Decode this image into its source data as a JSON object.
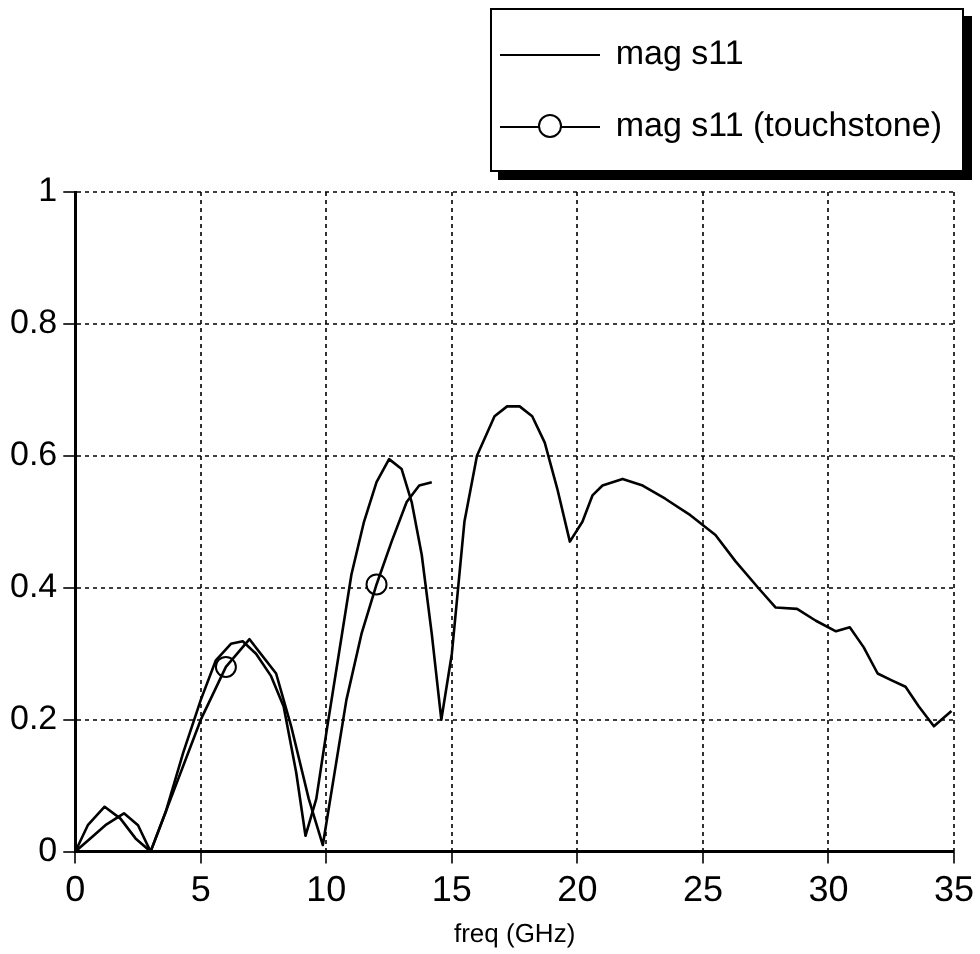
{
  "chart_data": {
    "type": "line",
    "xlabel": "freq (GHz)",
    "xlim": [
      0,
      35
    ],
    "xticks": [
      0,
      5,
      10,
      15,
      20,
      25,
      30,
      35
    ],
    "ylim": [
      0,
      1
    ],
    "yticks": [
      0,
      0.2,
      0.4,
      0.6,
      0.8,
      1
    ],
    "grid": true,
    "legend": "top right",
    "line_style": "solid",
    "series": [
      {
        "name": "mag s11",
        "color": "#000000",
        "marker": "none",
        "x": [
          0,
          0.5,
          1.17,
          1.8,
          2.4,
          3,
          3.6,
          4.3,
          5,
          5.6,
          6.2,
          6.67,
          7.2,
          7.8,
          8.3,
          8.8,
          9.17,
          9.6,
          10,
          10.5,
          11,
          11.5,
          12,
          12.5,
          13,
          13.4,
          13.8,
          14.2,
          14.58,
          15,
          15.5,
          16,
          16.7,
          17.2,
          17.7,
          18.2,
          18.7,
          19.2,
          19.7,
          20.2,
          20.6,
          21,
          21.8,
          22.6,
          23.5,
          24.5,
          25.5,
          26.3,
          27.2,
          27.9,
          28.75,
          29.5,
          30.3,
          30.85,
          31.4,
          31.96,
          32.5,
          33.07,
          33.6,
          34.2,
          34.9
        ],
        "values": [
          0,
          0.04,
          0.068,
          0.05,
          0.02,
          0,
          0.06,
          0.15,
          0.23,
          0.29,
          0.315,
          0.319,
          0.3,
          0.266,
          0.22,
          0.12,
          0.024,
          0.08,
          0.18,
          0.3,
          0.42,
          0.5,
          0.56,
          0.595,
          0.58,
          0.53,
          0.45,
          0.33,
          0.2,
          0.3,
          0.5,
          0.6,
          0.66,
          0.675,
          0.675,
          0.66,
          0.62,
          0.55,
          0.47,
          0.5,
          0.54,
          0.555,
          0.565,
          0.555,
          0.535,
          0.51,
          0.48,
          0.44,
          0.4,
          0.37,
          0.368,
          0.35,
          0.334,
          0.34,
          0.31,
          0.27,
          0.26,
          0.25,
          0.22,
          0.19,
          0.213
        ]
      },
      {
        "name": "mag s11 (touchstone)",
        "color": "#000000",
        "marker": "none",
        "x": [
          0,
          0.6,
          1.2,
          1.94,
          2.5,
          3,
          4,
          5,
          6,
          6.94,
          8,
          8.6,
          9.3,
          9.86,
          10.8,
          11.4,
          12,
          12.6,
          13.2,
          13.7,
          14.2
        ],
        "values": [
          0,
          0.02,
          0.04,
          0.058,
          0.04,
          0,
          0.1,
          0.2,
          0.28,
          0.322,
          0.27,
          0.19,
          0.08,
          0.01,
          0.23,
          0.33,
          0.405,
          0.47,
          0.53,
          0.555,
          0.56
        ]
      },
      {
        "type": "scatter",
        "color": "#000000",
        "marker": "circle",
        "x": [
          6,
          12
        ],
        "values": [
          0.28,
          0.405
        ]
      }
    ]
  }
}
